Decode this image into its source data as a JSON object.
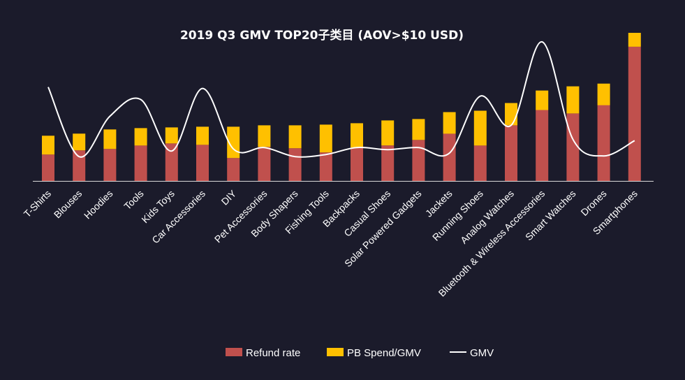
{
  "chart_data": {
    "type": "bar",
    "title": "2019 Q3 GMV TOP20子类目   (AOV>$10 USD)",
    "categories": [
      "T-Shirts",
      "Blouses",
      "Hoodies",
      "Tools",
      "Kids Toys",
      "Car Accessories",
      "DIY",
      "Pet Accessories",
      "Body Shapers",
      "Fishing Tools",
      "Backpacks",
      "Casual Shoes",
      "Solar Powered Gadgets",
      "Jackets",
      "Running Shoes",
      "Analog Watches",
      "Bluetooth & Wireless Accessories",
      "Smart Watches",
      "Drones",
      "Smartphones"
    ],
    "stacked": true,
    "series": [
      {
        "name": "Refund rate",
        "kind": "bar",
        "color": "#c0504d",
        "values": [
          38,
          44,
          46,
          51,
          54,
          52,
          33,
          49,
          47,
          41,
          48,
          51,
          59,
          68,
          51,
          80,
          102,
          97,
          109,
          193
        ]
      },
      {
        "name": "PB Spend/GMV",
        "kind": "bar",
        "color": "#ffc000",
        "values": [
          27,
          24,
          28,
          25,
          23,
          26,
          45,
          31,
          33,
          40,
          35,
          36,
          30,
          31,
          50,
          32,
          28,
          39,
          31,
          20
        ]
      },
      {
        "name": "GMV",
        "kind": "line",
        "color": "#ffffff",
        "values": [
          135,
          35,
          93,
          117,
          43,
          133,
          46,
          48,
          35,
          38,
          48,
          45,
          48,
          40,
          122,
          80,
          200,
          60,
          36,
          58
        ]
      }
    ],
    "legend": [
      "Refund rate",
      "PB Spend/GMV",
      "GMV"
    ],
    "legend_position": "bottom",
    "ylim": [
      0,
      215
    ],
    "y_axis_visible": false,
    "grid": false
  }
}
